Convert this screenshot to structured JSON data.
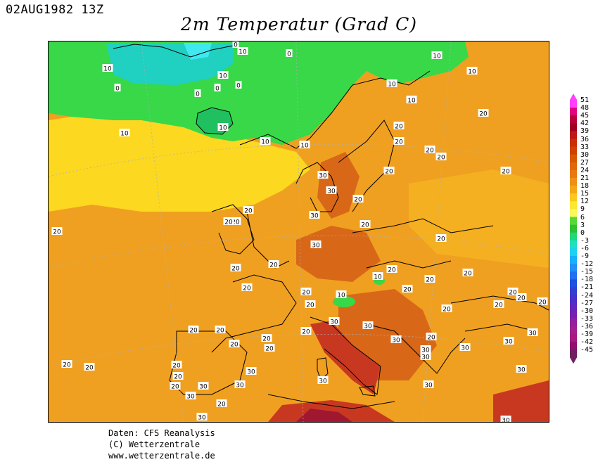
{
  "header": {
    "timestamp": "02AUG1982 13Z",
    "title": "2m Temperatur (Grad C)"
  },
  "colorbar": {
    "labels": [
      "51",
      "48",
      "45",
      "42",
      "39",
      "36",
      "33",
      "30",
      "27",
      "24",
      "21",
      "18",
      "15",
      "12",
      "9",
      "6",
      "3",
      "0",
      "-3",
      "-6",
      "-9",
      "-12",
      "-15",
      "-18",
      "-21",
      "-24",
      "-27",
      "-30",
      "-33",
      "-36",
      "-39",
      "-42",
      "-45"
    ],
    "colors": [
      "#ff40ff",
      "#e00080",
      "#b8003c",
      "#a00020",
      "#c01818",
      "#c83000",
      "#d04000",
      "#d85800",
      "#e06808",
      "#e87810",
      "#ee9018",
      "#f4a818",
      "#fcc820",
      "#fce830",
      "#f8f860",
      "#58d838",
      "#30c030",
      "#20d878",
      "#20e0c0",
      "#20d0f0",
      "#18b0f8",
      "#2090f8",
      "#2070f0",
      "#2050e0",
      "#3040d0",
      "#4830c8",
      "#6028c0",
      "#7820b0",
      "#9020a0",
      "#a02090",
      "#a81880",
      "#901070",
      "#702060"
    ]
  },
  "map": {
    "contour_labels": [
      {
        "text": "0",
        "pos": [
          334,
          62
        ]
      },
      {
        "text": "10",
        "pos": [
          344,
          72
        ]
      },
      {
        "text": "0",
        "pos": [
          410,
          75
        ]
      },
      {
        "text": "10",
        "pos": [
          152,
          96
        ]
      },
      {
        "text": "10",
        "pos": [
          316,
          106
        ]
      },
      {
        "text": "0",
        "pos": [
          308,
          124
        ]
      },
      {
        "text": "0",
        "pos": [
          338,
          120
        ]
      },
      {
        "text": "0",
        "pos": [
          280,
          132
        ]
      },
      {
        "text": "0",
        "pos": [
          166,
          124
        ]
      },
      {
        "text": "10",
        "pos": [
          316,
          180
        ]
      },
      {
        "text": "10",
        "pos": [
          176,
          188
        ]
      },
      {
        "text": "10",
        "pos": [
          376,
          200
        ]
      },
      {
        "text": "10",
        "pos": [
          432,
          205
        ]
      },
      {
        "text": "10",
        "pos": [
          620,
          78
        ]
      },
      {
        "text": "10",
        "pos": [
          670,
          100
        ]
      },
      {
        "text": "10",
        "pos": [
          556,
          118
        ]
      },
      {
        "text": "10",
        "pos": [
          584,
          141
        ]
      },
      {
        "text": "20",
        "pos": [
          686,
          160
        ]
      },
      {
        "text": "20",
        "pos": [
          566,
          178
        ]
      },
      {
        "text": "20",
        "pos": [
          566,
          200
        ]
      },
      {
        "text": "20",
        "pos": [
          610,
          212
        ]
      },
      {
        "text": "20",
        "pos": [
          626,
          222
        ]
      },
      {
        "text": "20",
        "pos": [
          718,
          242
        ]
      },
      {
        "text": "20",
        "pos": [
          552,
          242
        ]
      },
      {
        "text": "30",
        "pos": [
          458,
          248
        ]
      },
      {
        "text": "30",
        "pos": [
          470,
          270
        ]
      },
      {
        "text": "20",
        "pos": [
          508,
          282
        ]
      },
      {
        "text": "20",
        "pos": [
          352,
          298
        ]
      },
      {
        "text": "20",
        "pos": [
          334,
          314
        ]
      },
      {
        "text": "30",
        "pos": [
          446,
          305
        ]
      },
      {
        "text": "20",
        "pos": [
          324,
          314
        ]
      },
      {
        "text": "20",
        "pos": [
          518,
          318
        ]
      },
      {
        "text": "20",
        "pos": [
          80,
          328
        ]
      },
      {
        "text": "20",
        "pos": [
          626,
          338
        ]
      },
      {
        "text": "30",
        "pos": [
          448,
          347
        ]
      },
      {
        "text": "20",
        "pos": [
          388,
          375
        ]
      },
      {
        "text": "20",
        "pos": [
          334,
          380
        ]
      },
      {
        "text": "10",
        "pos": [
          536,
          392
        ]
      },
      {
        "text": "20",
        "pos": [
          556,
          382
        ]
      },
      {
        "text": "20",
        "pos": [
          664,
          387
        ]
      },
      {
        "text": "20",
        "pos": [
          610,
          396
        ]
      },
      {
        "text": "20",
        "pos": [
          350,
          408
        ]
      },
      {
        "text": "20",
        "pos": [
          578,
          410
        ]
      },
      {
        "text": "20",
        "pos": [
          434,
          414
        ]
      },
      {
        "text": "10",
        "pos": [
          484,
          418
        ]
      },
      {
        "text": "20",
        "pos": [
          728,
          414
        ]
      },
      {
        "text": "20",
        "pos": [
          740,
          422
        ]
      },
      {
        "text": "20",
        "pos": [
          770,
          428
        ]
      },
      {
        "text": "20",
        "pos": [
          440,
          432
        ]
      },
      {
        "text": "20",
        "pos": [
          708,
          432
        ]
      },
      {
        "text": "20",
        "pos": [
          634,
          438
        ]
      },
      {
        "text": "20",
        "pos": [
          434,
          470
        ]
      },
      {
        "text": "30",
        "pos": [
          474,
          456
        ]
      },
      {
        "text": "30",
        "pos": [
          522,
          462
        ]
      },
      {
        "text": "20",
        "pos": [
          274,
          468
        ]
      },
      {
        "text": "20",
        "pos": [
          312,
          468
        ]
      },
      {
        "text": "20",
        "pos": [
          378,
          480
        ]
      },
      {
        "text": "20",
        "pos": [
          332,
          488
        ]
      },
      {
        "text": "30",
        "pos": [
          562,
          482
        ]
      },
      {
        "text": "20",
        "pos": [
          612,
          478
        ]
      },
      {
        "text": "30",
        "pos": [
          756,
          472
        ]
      },
      {
        "text": "30",
        "pos": [
          722,
          484
        ]
      },
      {
        "text": "20",
        "pos": [
          382,
          494
        ]
      },
      {
        "text": "30",
        "pos": [
          604,
          496
        ]
      },
      {
        "text": "30",
        "pos": [
          660,
          493
        ]
      },
      {
        "text": "20",
        "pos": [
          94,
          517
        ]
      },
      {
        "text": "20",
        "pos": [
          126,
          521
        ]
      },
      {
        "text": "20",
        "pos": [
          250,
          518
        ]
      },
      {
        "text": "30",
        "pos": [
          604,
          506
        ]
      },
      {
        "text": "30",
        "pos": [
          740,
          524
        ]
      },
      {
        "text": "30",
        "pos": [
          356,
          527
        ]
      },
      {
        "text": "20",
        "pos": [
          252,
          534
        ]
      },
      {
        "text": "30",
        "pos": [
          288,
          548
        ]
      },
      {
        "text": "20",
        "pos": [
          248,
          548
        ]
      },
      {
        "text": "30",
        "pos": [
          340,
          546
        ]
      },
      {
        "text": "30",
        "pos": [
          458,
          540
        ]
      },
      {
        "text": "30",
        "pos": [
          608,
          546
        ]
      },
      {
        "text": "30",
        "pos": [
          270,
          562
        ]
      },
      {
        "text": "20",
        "pos": [
          314,
          573
        ]
      },
      {
        "text": "30",
        "pos": [
          286,
          592
        ]
      },
      {
        "text": "30",
        "pos": [
          718,
          596
        ]
      }
    ]
  },
  "credits": {
    "line1": "Daten: CFS Reanalysis",
    "line2": "(C) Wetterzentrale",
    "line3": "www.wetterzentrale.de"
  }
}
